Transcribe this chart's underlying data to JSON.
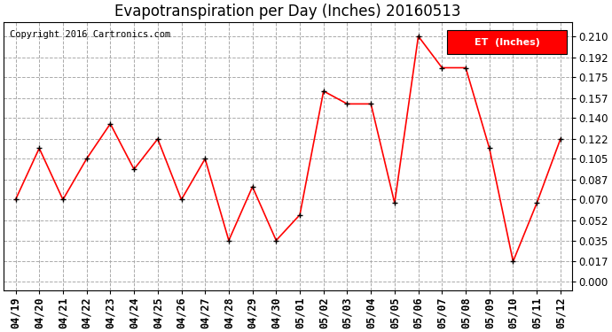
{
  "title": "Evapotranspiration per Day (Inches) 20160513",
  "copyright": "Copyright 2016 Cartronics.com",
  "legend_label": "ET  (Inches)",
  "legend_bg": "#FF0000",
  "legend_fg": "#FFFFFF",
  "x_labels": [
    "04/19",
    "04/20",
    "04/21",
    "04/22",
    "04/23",
    "04/24",
    "04/25",
    "04/26",
    "04/27",
    "04/28",
    "04/29",
    "04/30",
    "05/01",
    "05/02",
    "05/03",
    "05/04",
    "05/05",
    "05/06",
    "05/07",
    "05/08",
    "05/09",
    "05/10",
    "05/11",
    "05/12"
  ],
  "y_values": [
    0.07,
    0.114,
    0.07,
    0.105,
    0.135,
    0.096,
    0.122,
    0.07,
    0.105,
    0.035,
    0.081,
    0.035,
    0.057,
    0.163,
    0.152,
    0.152,
    0.067,
    0.21,
    0.183,
    0.183,
    0.114,
    0.017,
    0.067,
    0.122
  ],
  "line_color": "#FF0000",
  "marker_color": "#000000",
  "marker_size": 5,
  "line_width": 1.2,
  "y_ticks": [
    0.0,
    0.017,
    0.035,
    0.052,
    0.07,
    0.087,
    0.105,
    0.122,
    0.14,
    0.157,
    0.175,
    0.192,
    0.21
  ],
  "ylim": [
    -0.008,
    0.222
  ],
  "grid_color": "#AAAAAA",
  "grid_style": "--",
  "background_color": "#FFFFFF",
  "title_fontsize": 12,
  "copyright_fontsize": 7.5,
  "tick_fontsize": 8.5,
  "legend_fontsize": 8
}
